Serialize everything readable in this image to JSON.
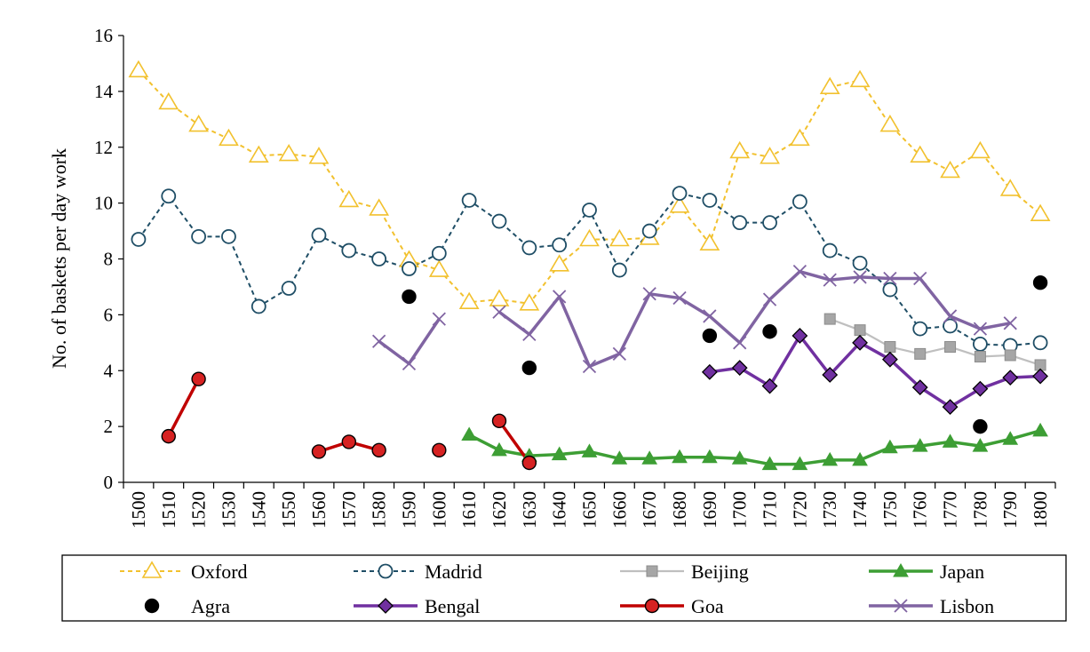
{
  "chart_data": {
    "type": "line",
    "title": "",
    "xlabel": "",
    "ylabel": "No. of baskets per day work",
    "ylim": [
      0,
      16
    ],
    "yticks": [
      0,
      2,
      4,
      6,
      8,
      10,
      12,
      14,
      16
    ],
    "x": [
      1500,
      1510,
      1520,
      1530,
      1540,
      1550,
      1560,
      1570,
      1580,
      1590,
      1600,
      1610,
      1620,
      1630,
      1640,
      1650,
      1660,
      1670,
      1680,
      1690,
      1700,
      1710,
      1720,
      1730,
      1740,
      1750,
      1760,
      1770,
      1780,
      1790,
      1800
    ],
    "legend_position": "bottom",
    "series": [
      {
        "name": "Oxford",
        "color": "#f2c12e",
        "line": "dashed",
        "marker": "triangle-open",
        "values": [
          14.75,
          13.6,
          12.8,
          12.3,
          11.7,
          11.75,
          11.65,
          10.1,
          9.8,
          7.95,
          7.6,
          6.45,
          6.55,
          6.4,
          7.8,
          8.7,
          8.7,
          8.75,
          9.9,
          8.55,
          11.85,
          11.65,
          12.3,
          14.15,
          14.4,
          12.8,
          11.7,
          11.15,
          11.85,
          10.5,
          9.6
        ]
      },
      {
        "name": "Madrid",
        "color": "#1f4e66",
        "line": "dashed",
        "marker": "circle-open",
        "values": [
          8.7,
          10.25,
          8.8,
          8.8,
          6.3,
          6.95,
          8.85,
          8.3,
          8.0,
          7.65,
          8.2,
          10.1,
          9.35,
          8.4,
          8.5,
          9.75,
          7.6,
          9.0,
          10.35,
          10.1,
          9.3,
          9.3,
          10.05,
          8.3,
          7.85,
          6.9,
          5.5,
          5.6,
          4.95,
          4.9,
          5.0
        ]
      },
      {
        "name": "Beijing",
        "color": "#bfbfbf",
        "line": "solid",
        "marker": "square",
        "values": [
          null,
          null,
          null,
          null,
          null,
          null,
          null,
          null,
          null,
          null,
          null,
          null,
          null,
          null,
          null,
          null,
          null,
          null,
          null,
          null,
          null,
          null,
          null,
          5.85,
          5.45,
          4.85,
          4.6,
          4.85,
          4.5,
          4.55,
          4.2
        ]
      },
      {
        "name": "Japan",
        "color": "#3d9e34",
        "line": "solid",
        "marker": "triangle",
        "values": [
          null,
          null,
          null,
          null,
          null,
          null,
          null,
          null,
          null,
          null,
          null,
          1.7,
          1.15,
          0.95,
          1.0,
          1.1,
          0.85,
          0.85,
          0.9,
          0.9,
          0.85,
          0.65,
          0.65,
          0.8,
          0.8,
          1.25,
          1.3,
          1.45,
          1.3,
          1.55,
          1.85
        ]
      },
      {
        "name": "Agra",
        "color": "#000000",
        "line": "none",
        "marker": "circle",
        "values": [
          null,
          null,
          null,
          null,
          null,
          null,
          null,
          null,
          null,
          6.65,
          null,
          null,
          null,
          4.1,
          null,
          null,
          null,
          null,
          null,
          5.25,
          null,
          5.4,
          null,
          null,
          null,
          null,
          null,
          null,
          2.0,
          null,
          7.15
        ]
      },
      {
        "name": "Bengal",
        "color": "#7030a0",
        "line": "solid",
        "marker": "diamond",
        "values": [
          null,
          null,
          null,
          null,
          null,
          null,
          null,
          null,
          null,
          null,
          null,
          null,
          null,
          null,
          null,
          null,
          null,
          null,
          null,
          3.95,
          4.1,
          3.45,
          5.25,
          3.85,
          5.0,
          4.4,
          3.4,
          2.7,
          3.35,
          3.75,
          3.8
        ]
      },
      {
        "name": "Goa",
        "color": "#c00000",
        "line": "solid",
        "marker": "circle",
        "values": [
          null,
          1.65,
          3.7,
          null,
          null,
          null,
          1.1,
          1.45,
          1.15,
          null,
          1.15,
          null,
          2.2,
          0.7,
          null,
          null,
          null,
          null,
          null,
          null,
          null,
          null,
          null,
          null,
          null,
          null,
          null,
          null,
          null,
          null,
          null
        ]
      },
      {
        "name": "Lisbon",
        "color": "#8064a2",
        "line": "solid",
        "marker": "x",
        "values": [
          null,
          null,
          null,
          null,
          null,
          null,
          null,
          null,
          5.05,
          4.25,
          5.85,
          null,
          6.1,
          5.3,
          6.65,
          4.15,
          4.6,
          6.75,
          6.6,
          5.95,
          5.0,
          6.55,
          7.55,
          7.25,
          7.35,
          7.3,
          7.3,
          5.95,
          5.5,
          5.7,
          null
        ]
      }
    ]
  }
}
